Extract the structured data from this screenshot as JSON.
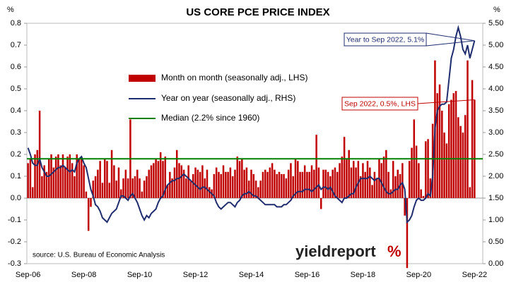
{
  "chart_data": {
    "type": "combo",
    "title": "US CORE PCE PRICE INDEX",
    "y_unit": "%",
    "y2_unit": "%",
    "source": "source: U.S. Bureau of Economic Analysis",
    "logo": {
      "text": "yieldreport",
      "symbol": "%"
    },
    "categories": [
      "Sep-06",
      null,
      null,
      null,
      null,
      null,
      null,
      null,
      null,
      null,
      null,
      null,
      null,
      null,
      null,
      null,
      null,
      null,
      null,
      null,
      null,
      null,
      null,
      null,
      "Sep-08",
      null,
      null,
      null,
      null,
      null,
      null,
      null,
      null,
      null,
      null,
      null,
      null,
      null,
      null,
      null,
      null,
      null,
      null,
      null,
      null,
      null,
      null,
      null,
      "Sep-10",
      null,
      null,
      null,
      null,
      null,
      null,
      null,
      null,
      null,
      null,
      null,
      null,
      null,
      null,
      null,
      null,
      null,
      null,
      null,
      null,
      null,
      null,
      null,
      "Sep-12",
      null,
      null,
      null,
      null,
      null,
      null,
      null,
      null,
      null,
      null,
      null,
      null,
      null,
      null,
      null,
      null,
      null,
      null,
      null,
      null,
      null,
      null,
      null,
      "Sep-14",
      null,
      null,
      null,
      null,
      null,
      null,
      null,
      null,
      null,
      null,
      null,
      null,
      null,
      null,
      null,
      null,
      null,
      null,
      null,
      null,
      null,
      null,
      null,
      "Sep-16",
      null,
      null,
      null,
      null,
      null,
      null,
      null,
      null,
      null,
      null,
      null,
      null,
      null,
      null,
      null,
      null,
      null,
      null,
      null,
      null,
      null,
      null,
      null,
      "Sep-18",
      null,
      null,
      null,
      null,
      null,
      null,
      null,
      null,
      null,
      null,
      null,
      null,
      null,
      null,
      null,
      null,
      null,
      null,
      null,
      null,
      null,
      null,
      null,
      "Sep-20",
      null,
      null,
      null,
      null,
      null,
      null,
      null,
      null,
      null,
      null,
      null,
      null,
      null,
      null,
      null,
      null,
      null,
      null,
      null,
      null,
      null,
      null,
      null,
      "Sep-22"
    ],
    "series": [
      {
        "name": "Month on month (seasonally adj., LHS)",
        "color": "#c00000",
        "type": "bar",
        "values": [
          0.16,
          0.18,
          0.05,
          0.2,
          0.22,
          0.4,
          0.1,
          0.15,
          0.12,
          0.18,
          0.2,
          0.14,
          0.19,
          0.2,
          0.15,
          0.2,
          0.14,
          0.19,
          0.2,
          0.16,
          0.1,
          0.2,
          0.18,
          0.19,
          0.15,
          0.03,
          -0.15,
          -0.04,
          0.08,
          0.1,
          0.13,
          0.17,
          0.07,
          0.18,
          0.17,
          0.07,
          0.22,
          0.15,
          0.08,
          0.14,
          0.04,
          0.09,
          0.13,
          0.09,
          0.36,
          0.09,
          0.1,
          0.13,
          0.09,
          0.03,
          0.08,
          0.1,
          0.13,
          0.15,
          0.16,
          0.18,
          0.17,
          0.21,
          0.17,
          0.19,
          0.06,
          0.12,
          0.09,
          0.14,
          0.22,
          0.16,
          0.15,
          0.13,
          0.09,
          0.15,
          0.08,
          0.11,
          0.14,
          0.13,
          0.12,
          0.15,
          0.09,
          0.13,
          0.05,
          0.04,
          0.11,
          0.14,
          0.12,
          0.11,
          0.15,
          0.12,
          0.12,
          0.14,
          0.1,
          0.13,
          0.19,
          0.17,
          0.18,
          0.13,
          0.14,
          0.08,
          0.13,
          0.11,
          0.08,
          0.05,
          0.08,
          0.12,
          0.13,
          0.12,
          0.14,
          0.16,
          0.13,
          0.11,
          0.12,
          0.11,
          0.11,
          0.09,
          0.13,
          0.16,
          0.1,
          0.18,
          0.17,
          0.12,
          0.12,
          0.15,
          0.12,
          0.12,
          0.15,
          0.13,
          0.29,
          0.14,
          -0.05,
          0.13,
          0.13,
          0.12,
          0.1,
          0.13,
          0.14,
          0.12,
          0.16,
          0.19,
          0.28,
          0.18,
          0.22,
          0.14,
          0.17,
          0.14,
          0.17,
          0.1,
          0.16,
          0.12,
          0.17,
          0.14,
          0.06,
          0.12,
          0.09,
          0.18,
          0.16,
          0.19,
          0.22,
          0.12,
          0.04,
          0.17,
          0.1,
          0.13,
          0.11,
          0.16,
          -0.08,
          -0.32,
          0.17,
          0.23,
          0.36,
          0.24,
          0.16,
          0.04,
          0.01,
          0.26,
          0.27,
          0.09,
          0.34,
          0.63,
          0.48,
          0.52,
          0.4,
          0.3,
          0.25,
          0.43,
          0.45,
          0.48,
          0.49,
          0.37,
          0.33,
          0.3,
          0.38,
          0.63,
          0.05,
          0.54,
          0.45
        ]
      },
      {
        "name": "Year on year (seasonally adj., RHS)",
        "color": "#1f2d6e",
        "type": "line",
        "axis": "y2",
        "values": [
          2.65,
          2.5,
          2.3,
          2.25,
          2.25,
          2.4,
          2.2,
          2.1,
          2.0,
          2.0,
          2.05,
          2.1,
          2.15,
          2.2,
          2.2,
          2.25,
          2.2,
          2.15,
          2.1,
          2.15,
          2.1,
          2.3,
          2.4,
          2.45,
          2.3,
          2.2,
          1.95,
          1.7,
          1.55,
          1.35,
          1.3,
          1.2,
          1.05,
          1.0,
          0.95,
          1.05,
          1.15,
          1.2,
          1.25,
          1.4,
          1.55,
          1.55,
          1.5,
          1.45,
          1.55,
          1.6,
          1.5,
          1.4,
          1.25,
          1.1,
          1.0,
          1.1,
          1.05,
          1.15,
          1.2,
          1.25,
          1.4,
          1.5,
          1.55,
          1.7,
          1.8,
          1.85,
          1.9,
          1.9,
          1.95,
          1.95,
          2.0,
          2.05,
          2.0,
          1.95,
          1.9,
          1.85,
          1.8,
          1.75,
          1.7,
          1.75,
          1.75,
          1.7,
          1.65,
          1.6,
          1.55,
          1.4,
          1.3,
          1.25,
          1.3,
          1.35,
          1.4,
          1.4,
          1.35,
          1.3,
          1.4,
          1.45,
          1.55,
          1.6,
          1.6,
          1.65,
          1.6,
          1.55,
          1.55,
          1.5,
          1.45,
          1.4,
          1.35,
          1.35,
          1.35,
          1.35,
          1.35,
          1.3,
          1.3,
          1.3,
          1.35,
          1.35,
          1.4,
          1.45,
          1.55,
          1.6,
          1.65,
          1.65,
          1.65,
          1.7,
          1.7,
          1.7,
          1.65,
          1.7,
          1.75,
          1.8,
          1.7,
          1.75,
          1.75,
          1.7,
          1.75,
          1.65,
          1.55,
          1.5,
          1.45,
          1.4,
          1.5,
          1.5,
          1.55,
          1.6,
          1.6,
          1.75,
          1.85,
          1.95,
          1.95,
          1.95,
          1.95,
          2.0,
          1.95,
          1.9,
          1.95,
          1.95,
          1.85,
          1.75,
          1.65,
          1.6,
          1.6,
          1.65,
          1.7,
          1.7,
          1.8,
          1.85,
          1.7,
          0.95,
          1.0,
          1.1,
          1.3,
          1.45,
          1.5,
          1.45,
          1.45,
          1.5,
          1.6,
          1.55,
          2.0,
          3.1,
          3.5,
          3.6,
          3.65,
          3.65,
          3.7,
          4.2,
          4.7,
          4.9,
          5.2,
          5.4,
          5.2,
          4.9,
          4.8,
          5.0,
          4.7,
          4.9,
          5.1
        ]
      },
      {
        "name": "Median (2.2% since 1960)",
        "color": "#008000",
        "type": "hline",
        "value": 0.18
      }
    ],
    "annotations": [
      {
        "text": "Year to Sep 2022, 5.1%",
        "color": "#1f2d6e"
      },
      {
        "text": "Sep 2022, 0.5%, LHS",
        "color": "#c00000"
      }
    ],
    "ylim": [
      -0.3,
      0.8
    ],
    "yticks": [
      -0.3,
      -0.2,
      -0.1,
      {
        "value": 0,
        "label": "0.0"
      },
      0.1,
      0.2,
      0.3,
      0.4,
      0.5,
      0.6,
      0.7,
      0.8
    ],
    "y2lim": [
      0,
      5.5
    ],
    "y2ticks": [
      {
        "value": 0,
        "label": "0.00"
      },
      {
        "value": 0.5,
        "label": "0.50"
      },
      {
        "value": 1,
        "label": "1.00"
      },
      {
        "value": 1.5,
        "label": "1.50"
      },
      {
        "value": 2,
        "label": "2.00"
      },
      {
        "value": 2.5,
        "label": "2.50"
      },
      {
        "value": 3,
        "label": "3.00"
      },
      {
        "value": 3.5,
        "label": "3.50"
      },
      {
        "value": 4,
        "label": "4.00"
      },
      {
        "value": 4.5,
        "label": "4.50"
      },
      {
        "value": 5,
        "label": "5.00"
      },
      {
        "value": 5.5,
        "label": "5.50"
      }
    ],
    "grid": false
  }
}
